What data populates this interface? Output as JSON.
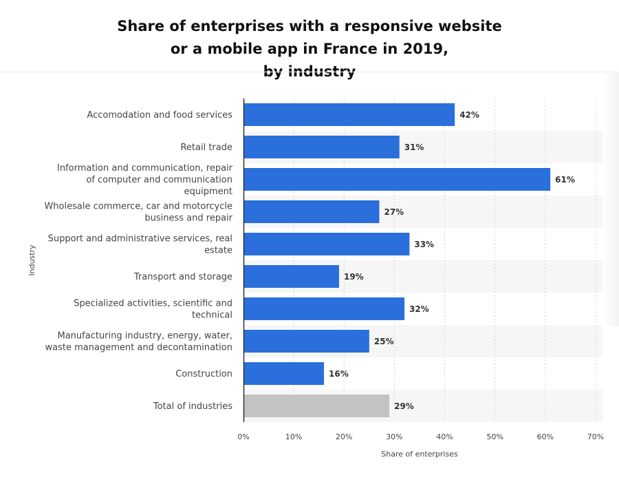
{
  "chart_data": {
    "type": "bar",
    "orientation": "horizontal",
    "title_lines": [
      "Share of enterprises with a responsive website",
      "or a mobile app in France in 2019,",
      "by industry"
    ],
    "xlabel": "Share of enterprises",
    "ylabel": "Industry",
    "xlim": [
      0,
      70
    ],
    "xticks": [
      0,
      10,
      20,
      30,
      40,
      50,
      60,
      70
    ],
    "xtick_labels": [
      "0%",
      "10%",
      "20%",
      "30%",
      "40%",
      "50%",
      "60%",
      "70%"
    ],
    "grid": true,
    "categories": [
      [
        "Accomodation and food services"
      ],
      [
        "Retail trade"
      ],
      [
        "Information and communication, repair",
        "of computer and communication",
        "equipment"
      ],
      [
        "Wholesale commerce, car and motorcycle",
        "business and repair"
      ],
      [
        "Support and administrative services, real",
        "estate"
      ],
      [
        "Transport and storage"
      ],
      [
        "Specialized activities, scientific and",
        "technical"
      ],
      [
        "Manufacturing industry, energy, water,",
        "waste management and decontamination"
      ],
      [
        "Construction"
      ],
      [
        "Total of industries"
      ]
    ],
    "values": [
      42,
      31,
      61,
      27,
      33,
      19,
      32,
      25,
      16,
      29
    ],
    "value_labels": [
      "42%",
      "31%",
      "61%",
      "27%",
      "33%",
      "19%",
      "32%",
      "25%",
      "16%",
      "29%"
    ],
    "highlight": [
      false,
      false,
      false,
      false,
      false,
      false,
      false,
      false,
      false,
      true
    ],
    "colors": {
      "bar": "#2a6fdb",
      "bar_highlight": "#c3c3c3",
      "band": "#f6f6f6",
      "grid": "#d4d4d4",
      "axis": "#2f2f2f",
      "text": "#444444",
      "label": "#333333"
    }
  }
}
